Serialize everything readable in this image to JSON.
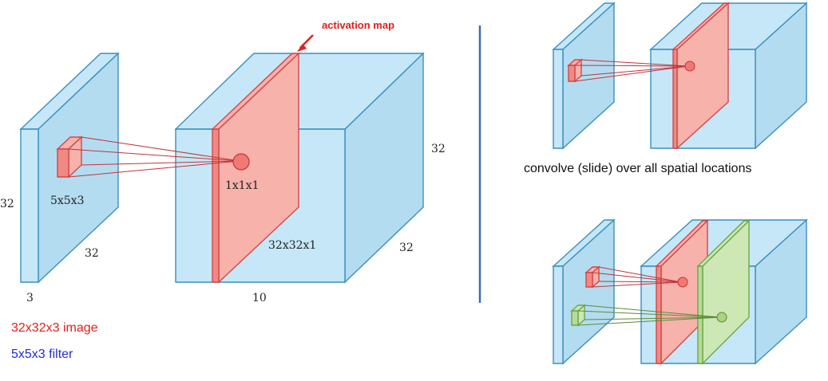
{
  "main_diagram": {
    "activation_map_label": "activation map",
    "input_height_label": "32",
    "input_width_label": "32",
    "input_depth_label": "3",
    "filter_label": "5x5x3",
    "output_point_label": "1x1x1",
    "activation_size_label": "32x32x1",
    "output_height_label": "32",
    "output_width_label": "32",
    "output_depth_label": "10",
    "image_caption": "32x32x3 image",
    "filter_caption": "5x5x3 filter"
  },
  "right_panel": {
    "caption": "convolve (slide) over all spatial locations"
  },
  "colors": {
    "input_volume": "#c6e7f7",
    "activation": "#f6b2ab",
    "second_activation": "#cde8b5",
    "divider": "#3d6db0"
  }
}
